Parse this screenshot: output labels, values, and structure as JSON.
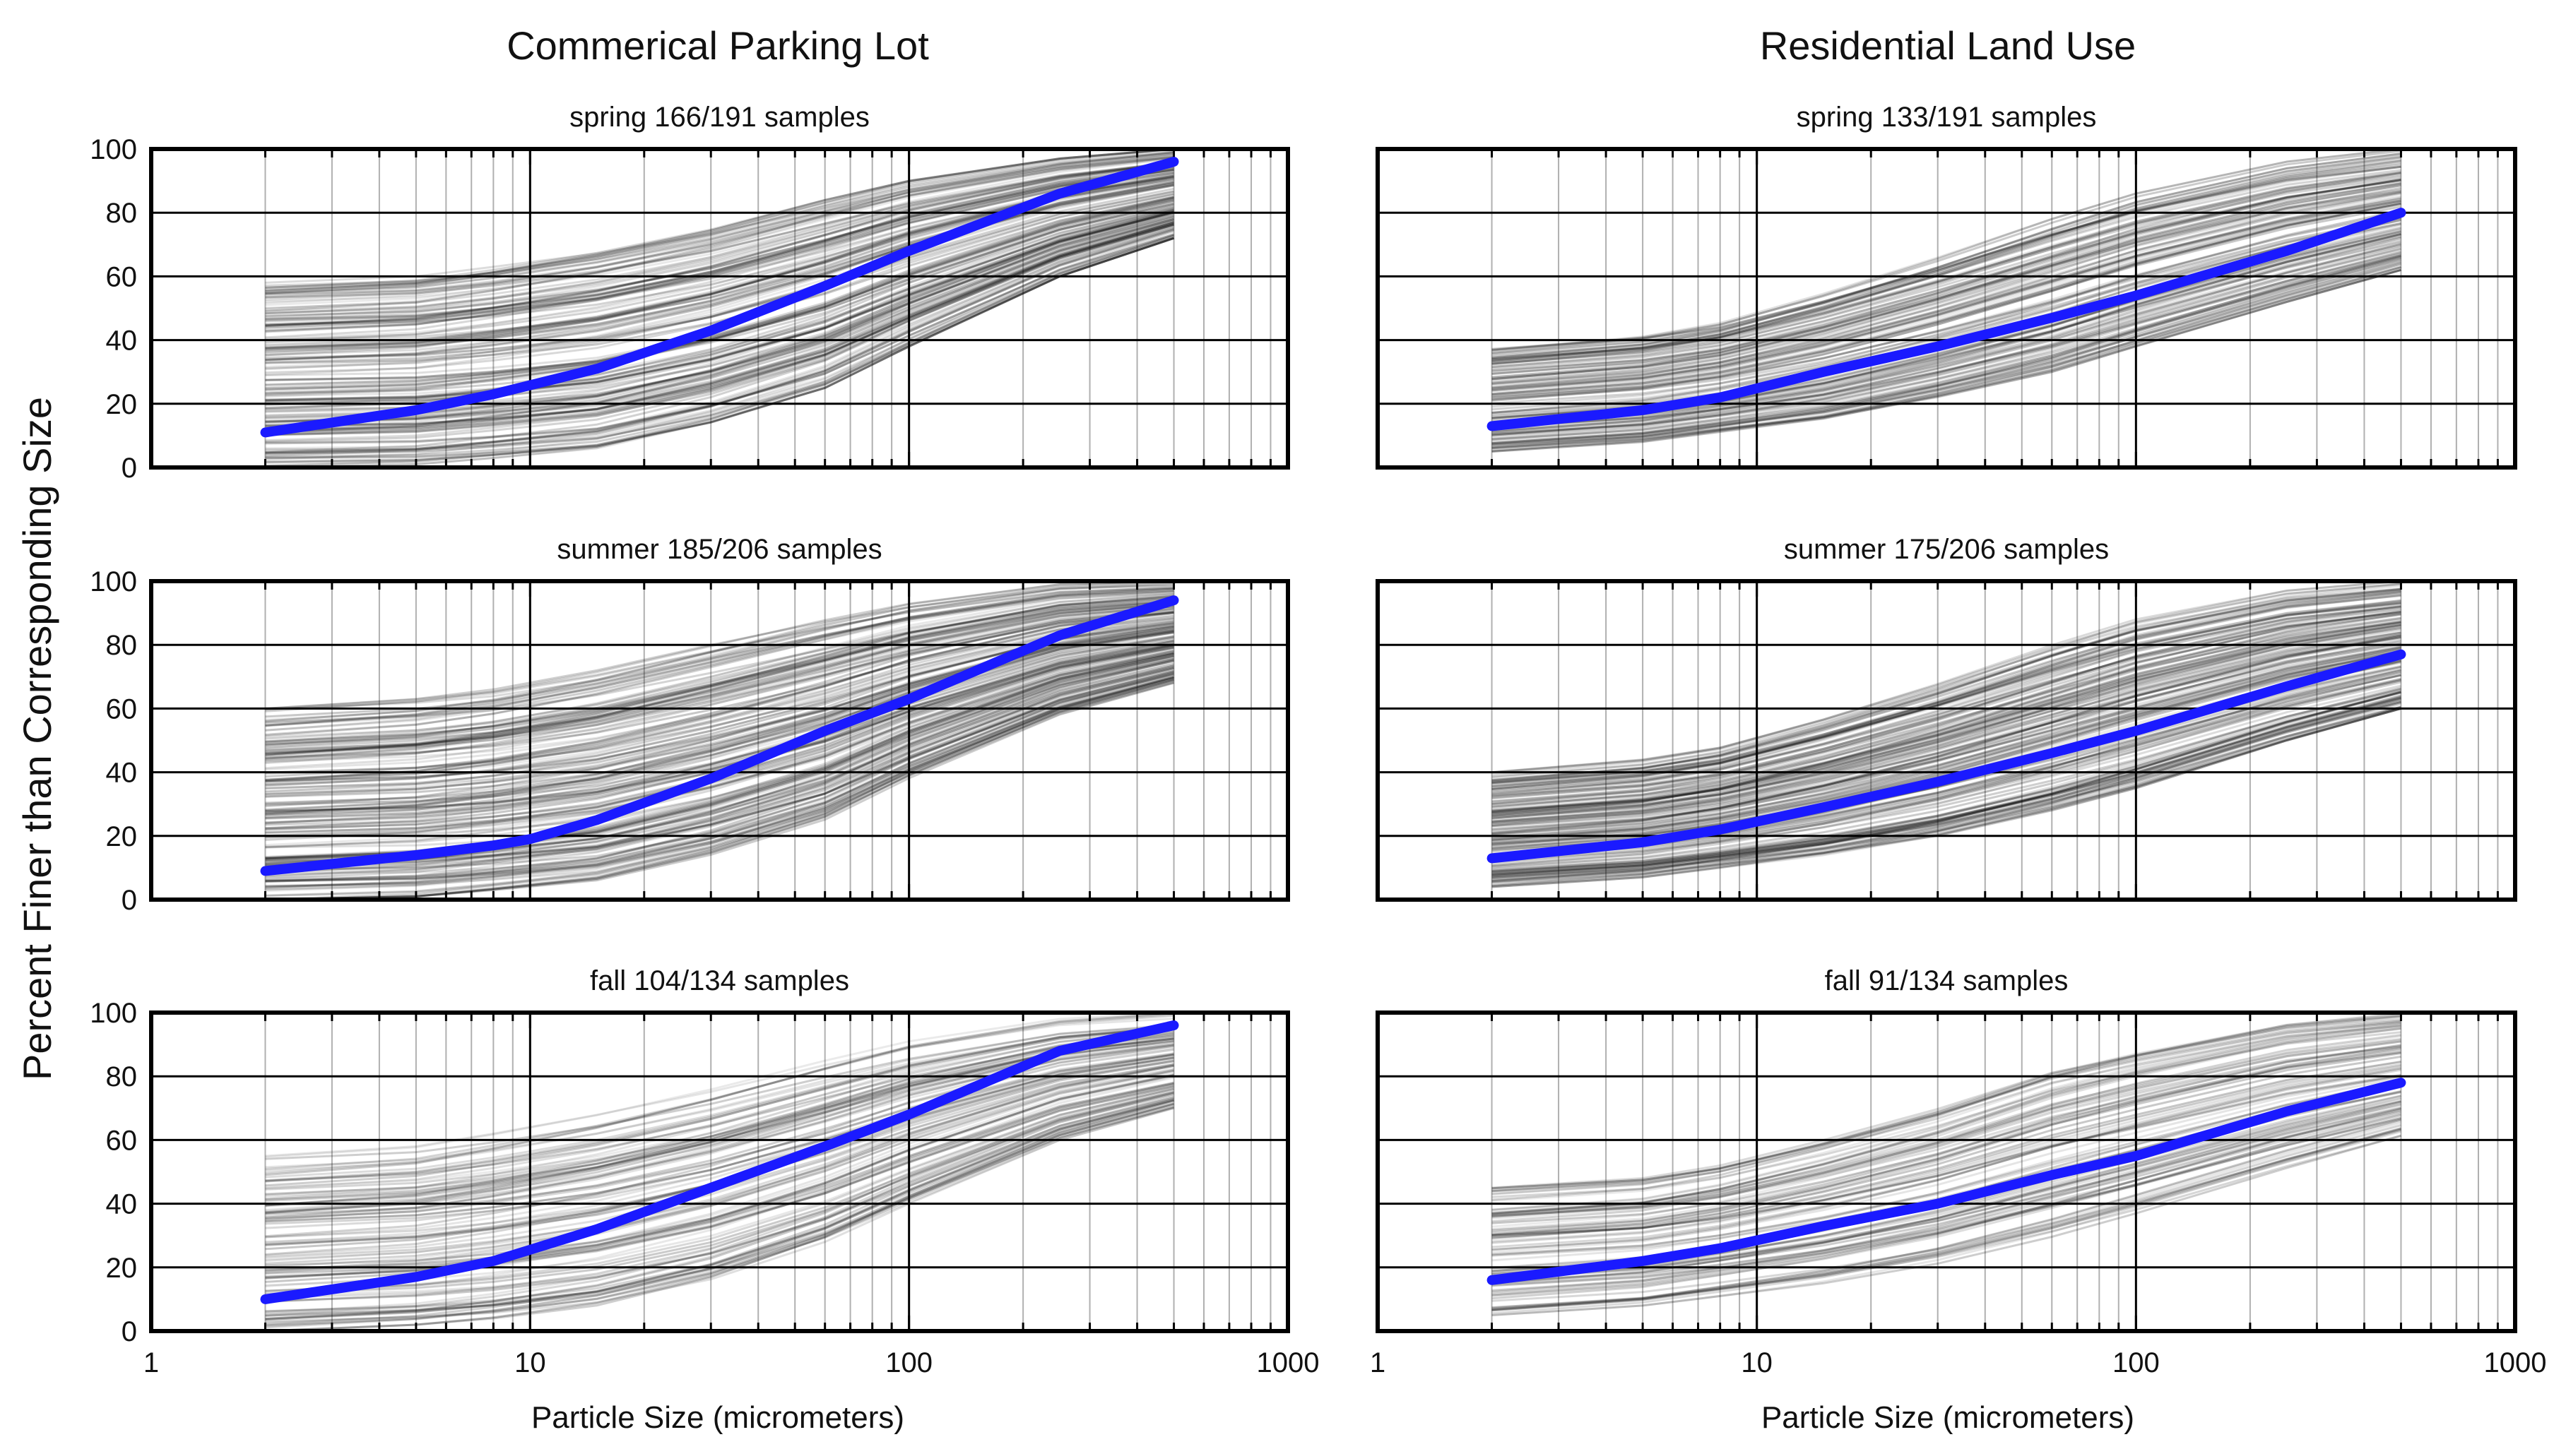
{
  "figure": {
    "ylabel": "Percent Finer than Corresponding Size",
    "columns": [
      {
        "title": "Commerical Parking Lot",
        "xlabel": "Particle Size (micrometers)"
      },
      {
        "title": "Residential Land Use",
        "xlabel": "Particle Size (micrometers)"
      }
    ]
  },
  "colors": {
    "median": "#1a1aff",
    "sample": "#000000",
    "frame": "#000000",
    "grid": "#000000"
  },
  "chart_data": [
    {
      "type": "line",
      "land_use": "Commerical Parking Lot",
      "title": "spring 166/191 samples",
      "xscale": "log",
      "xlim": [
        1,
        1000
      ],
      "ylim": [
        0,
        100
      ],
      "xticks": [
        "1",
        "10",
        "100",
        "1000"
      ],
      "yticks": [
        "0",
        "20",
        "40",
        "60",
        "80",
        "100"
      ],
      "grid": true,
      "sample_count": 166,
      "sample_band": {
        "x": [
          2,
          5,
          8,
          15,
          30,
          60,
          100,
          250,
          500
        ],
        "low": [
          0,
          1,
          3,
          6,
          14,
          25,
          38,
          60,
          72
        ],
        "high": [
          58,
          60,
          63,
          68,
          75,
          84,
          90,
          97,
          100
        ]
      },
      "median": {
        "x": [
          2,
          5,
          8,
          15,
          30,
          60,
          100,
          250,
          500
        ],
        "y": [
          11,
          18,
          23,
          31,
          43,
          57,
          68,
          86,
          96
        ]
      }
    },
    {
      "type": "line",
      "land_use": "Residential Land Use",
      "title": "spring 133/191 samples",
      "xscale": "log",
      "xlim": [
        1,
        1000
      ],
      "ylim": [
        0,
        100
      ],
      "xticks": [
        "1",
        "10",
        "100",
        "1000"
      ],
      "yticks": [
        "0",
        "20",
        "40",
        "60",
        "80",
        "100"
      ],
      "grid": true,
      "sample_count": 133,
      "sample_band": {
        "x": [
          2,
          5,
          8,
          15,
          30,
          60,
          100,
          250,
          500
        ],
        "low": [
          5,
          8,
          11,
          15,
          22,
          30,
          38,
          52,
          62
        ],
        "high": [
          38,
          42,
          46,
          55,
          66,
          78,
          86,
          96,
          100
        ]
      },
      "median": {
        "x": [
          2,
          5,
          8,
          15,
          30,
          60,
          100,
          250,
          500
        ],
        "y": [
          13,
          18,
          22,
          30,
          38,
          47,
          54,
          68,
          80
        ]
      }
    },
    {
      "type": "line",
      "land_use": "Commerical Parking Lot",
      "title": "summer 185/206 samples",
      "xscale": "log",
      "xlim": [
        1,
        1000
      ],
      "ylim": [
        0,
        100
      ],
      "xticks": [
        "1",
        "10",
        "100",
        "1000"
      ],
      "yticks": [
        "0",
        "20",
        "40",
        "60",
        "80",
        "100"
      ],
      "grid": true,
      "sample_count": 185,
      "sample_band": {
        "x": [
          2,
          5,
          8,
          15,
          30,
          60,
          100,
          250,
          500
        ],
        "low": [
          0,
          1,
          3,
          6,
          14,
          25,
          38,
          58,
          68
        ],
        "high": [
          60,
          63,
          66,
          72,
          80,
          88,
          93,
          99,
          100
        ]
      },
      "median": {
        "x": [
          2,
          5,
          8,
          10,
          15,
          30,
          60,
          100,
          250,
          500
        ],
        "y": [
          9,
          14,
          17,
          19,
          25,
          38,
          53,
          63,
          83,
          94
        ]
      }
    },
    {
      "type": "line",
      "land_use": "Residential Land Use",
      "title": "summer 175/206 samples",
      "xscale": "log",
      "xlim": [
        1,
        1000
      ],
      "ylim": [
        0,
        100
      ],
      "xticks": [
        "1",
        "10",
        "100",
        "1000"
      ],
      "yticks": [
        "0",
        "20",
        "40",
        "60",
        "80",
        "100"
      ],
      "grid": true,
      "sample_count": 175,
      "sample_band": {
        "x": [
          2,
          5,
          8,
          15,
          30,
          60,
          100,
          250,
          500
        ],
        "low": [
          4,
          7,
          10,
          14,
          20,
          28,
          35,
          50,
          60
        ],
        "high": [
          40,
          44,
          48,
          57,
          68,
          80,
          88,
          97,
          100
        ]
      },
      "median": {
        "x": [
          2,
          5,
          8,
          15,
          30,
          60,
          100,
          250,
          500
        ],
        "y": [
          13,
          18,
          22,
          29,
          37,
          46,
          53,
          67,
          77
        ]
      }
    },
    {
      "type": "line",
      "land_use": "Commerical Parking Lot",
      "title": "fall 104/134 samples",
      "xscale": "log",
      "xlim": [
        1,
        1000
      ],
      "ylim": [
        0,
        100
      ],
      "xticks": [
        "1",
        "10",
        "100",
        "1000"
      ],
      "yticks": [
        "0",
        "20",
        "40",
        "60",
        "80",
        "100"
      ],
      "grid": true,
      "sample_count": 104,
      "sample_band": {
        "x": [
          2,
          5,
          8,
          15,
          30,
          60,
          100,
          250,
          500
        ],
        "low": [
          0,
          2,
          4,
          8,
          16,
          28,
          40,
          60,
          70
        ],
        "high": [
          55,
          58,
          62,
          68,
          76,
          85,
          91,
          98,
          100
        ]
      },
      "median": {
        "x": [
          2,
          5,
          8,
          15,
          30,
          60,
          100,
          250,
          500
        ],
        "y": [
          10,
          17,
          22,
          32,
          45,
          58,
          68,
          88,
          96
        ]
      }
    },
    {
      "type": "line",
      "land_use": "Residential Land Use",
      "title": "fall 91/134 samples",
      "xscale": "log",
      "xlim": [
        1,
        1000
      ],
      "ylim": [
        0,
        100
      ],
      "xticks": [
        "1",
        "10",
        "100",
        "1000"
      ],
      "yticks": [
        "0",
        "20",
        "40",
        "60",
        "80",
        "100"
      ],
      "grid": true,
      "sample_count": 91,
      "sample_band": {
        "x": [
          2,
          5,
          8,
          15,
          30,
          60,
          100,
          250,
          500
        ],
        "low": [
          5,
          8,
          11,
          15,
          21,
          29,
          36,
          50,
          60
        ],
        "high": [
          45,
          48,
          52,
          60,
          70,
          82,
          88,
          97,
          100
        ]
      },
      "median": {
        "x": [
          2,
          5,
          8,
          15,
          30,
          60,
          100,
          250,
          500
        ],
        "y": [
          16,
          22,
          26,
          33,
          40,
          49,
          55,
          69,
          78
        ]
      }
    }
  ]
}
